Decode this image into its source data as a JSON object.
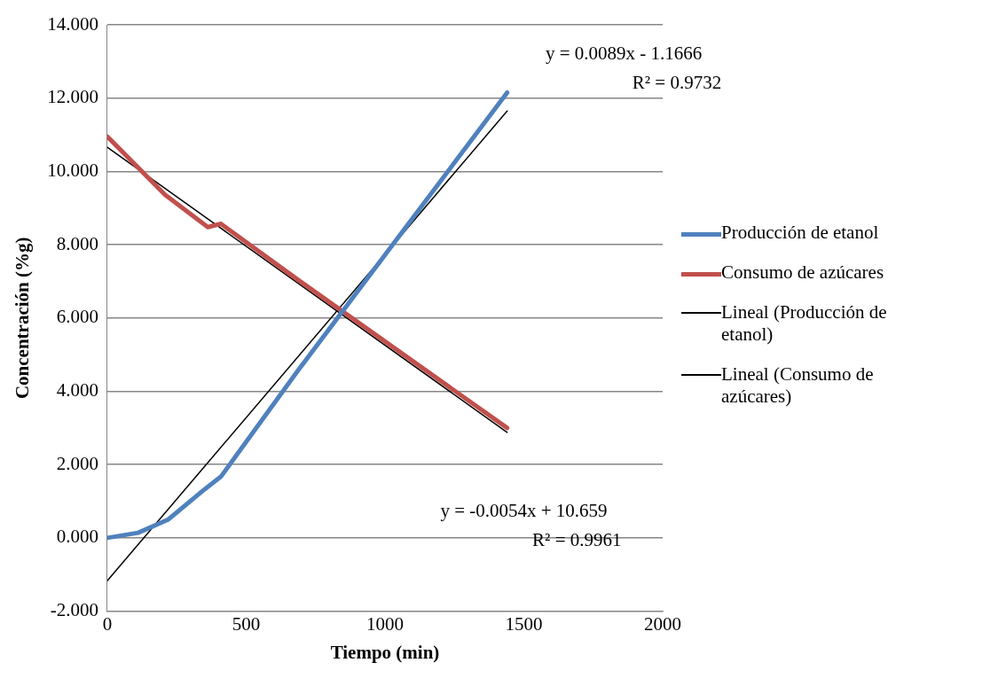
{
  "chart_data": {
    "type": "line",
    "xlabel": "Tiempo (min)",
    "ylabel": "Concentración (%g)",
    "xlim": [
      0,
      2000
    ],
    "xticks": [
      0,
      500,
      1000,
      1500,
      2000
    ],
    "ylim": [
      -2,
      14
    ],
    "yticks": [
      {
        "value": -2,
        "label": "-2.000"
      },
      {
        "value": 0,
        "label": "0.000"
      },
      {
        "value": 2,
        "label": "2.000"
      },
      {
        "value": 4,
        "label": "4.000"
      },
      {
        "value": 6,
        "label": "6.000"
      },
      {
        "value": 8,
        "label": "8.000"
      },
      {
        "value": 10,
        "label": "10.000"
      },
      {
        "value": 12,
        "label": "12.000"
      },
      {
        "value": 14,
        "label": "14.000"
      }
    ],
    "grid": "y",
    "legend": "right",
    "marker": "none",
    "line_style": "solid",
    "series": [
      {
        "name": "Producción de etanol",
        "color": "#4f81bd",
        "x": [
          0,
          111,
          219,
          351,
          409,
          685,
          1440
        ],
        "values": [
          0,
          0.14,
          0.5,
          1.33,
          1.67,
          4.55,
          12.15
        ]
      },
      {
        "name": "Consumo de azúcares",
        "color": "#c0504d",
        "x": [
          0,
          208,
          362,
          409,
          685,
          1440
        ],
        "values": [
          10.95,
          9.36,
          8.48,
          8.57,
          7.05,
          3.0
        ]
      },
      {
        "name": "Lineal (Producción de etanol)",
        "color": "#000000",
        "x": [
          0,
          1440
        ],
        "values": [
          -1.17,
          11.65
        ]
      },
      {
        "name": "Lineal (Consumo de azúcares)",
        "color": "#000000",
        "x": [
          0,
          1440
        ],
        "values": [
          10.66,
          2.88
        ]
      }
    ],
    "annotations": [
      "y = 0.0089x - 1.1666",
      "R² = 0.9732",
      "y = -0.0054x + 10.659",
      "R² = 0.9961"
    ]
  }
}
